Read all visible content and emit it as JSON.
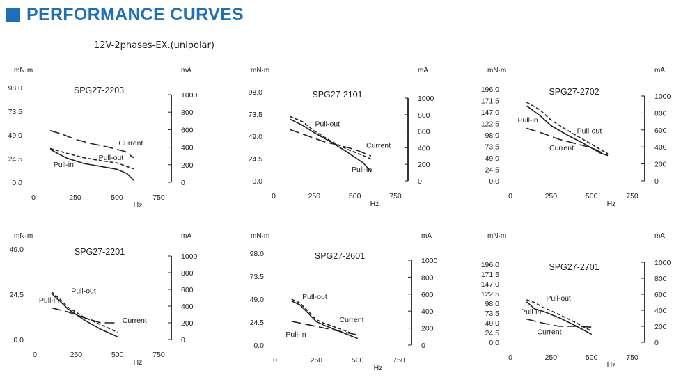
{
  "header": {
    "title": "PERFORMANCE CURVES",
    "subtitle": "12V-2phases-EX.(unipolar)"
  },
  "style": {
    "accent": "#1d6fb8",
    "line": "#222222"
  },
  "chart_data": [
    {
      "type": "line",
      "title": "SPG27-2203",
      "left_unit": "mN·m",
      "right_unit": "mA",
      "xlabel": "Hz",
      "xlim": [
        0,
        750
      ],
      "x_ticks": [
        0,
        250,
        500,
        750
      ],
      "ylim": [
        0,
        98
      ],
      "y_ticks": [
        "0.0",
        "24.5",
        "49.0",
        "73.5",
        "98.0"
      ],
      "y2lim": [
        0,
        1000
      ],
      "y2_ticks": [
        0,
        200,
        400,
        600,
        800,
        1000
      ],
      "series": [
        {
          "name": "Current",
          "axis": "right",
          "style": "longdash",
          "label_at": [
            510,
            420
          ],
          "x": [
            100,
            170,
            250,
            350,
            450,
            550,
            600
          ],
          "y": [
            590,
            550,
            490,
            440,
            400,
            350,
            280
          ]
        },
        {
          "name": "Pull-out",
          "axis": "left",
          "style": "dash",
          "label_at": [
            390,
            23
          ],
          "x": [
            100,
            200,
            300,
            400,
            500,
            600
          ],
          "y": [
            35,
            30,
            25.5,
            22.5,
            20,
            14
          ]
        },
        {
          "name": "Pull-in",
          "axis": "left",
          "style": "solid",
          "label_at": [
            120,
            16
          ],
          "x": [
            100,
            200,
            300,
            400,
            500,
            560,
            600
          ],
          "y": [
            34,
            25,
            19.5,
            16.5,
            13.5,
            9,
            2
          ]
        }
      ]
    },
    {
      "type": "line",
      "title": "SPG27-2101",
      "left_unit": "mN·m",
      "right_unit": "mA",
      "xlabel": "Hz",
      "xlim": [
        0,
        750
      ],
      "x_ticks": [
        0,
        250,
        500,
        750
      ],
      "ylim": [
        0,
        98
      ],
      "y_ticks": [
        "0.0",
        "24.5",
        "49.0",
        "73.5",
        "98.0"
      ],
      "y2lim": [
        0,
        1000
      ],
      "y2_ticks": [
        0,
        200,
        400,
        600,
        800,
        1000
      ],
      "series": [
        {
          "name": "Current",
          "axis": "right",
          "style": "longdash",
          "label_at": [
            570,
            400
          ],
          "x": [
            100,
            200,
            300,
            400,
            500,
            600
          ],
          "y": [
            620,
            550,
            480,
            430,
            380,
            300
          ]
        },
        {
          "name": "Pull-out",
          "axis": "left",
          "style": "dash",
          "label_at": [
            255,
            60
          ],
          "x": [
            100,
            180,
            250,
            350,
            450,
            550,
            600
          ],
          "y": [
            71,
            65,
            55,
            44,
            35,
            28,
            24
          ]
        },
        {
          "name": "Pull-in",
          "axis": "left",
          "style": "solid",
          "label_at": [
            480,
            10
          ],
          "x": [
            100,
            180,
            250,
            350,
            450,
            550,
            600
          ],
          "y": [
            68,
            61,
            53,
            43,
            32,
            20,
            10
          ]
        }
      ]
    },
    {
      "type": "line",
      "title": "SPG27-2702",
      "left_unit": "mN·m",
      "right_unit": "mA",
      "xlabel": "Hz",
      "xlim": [
        0,
        750
      ],
      "x_ticks": [
        0,
        250,
        500,
        750
      ],
      "ylim": [
        0,
        196
      ],
      "y_ticks": [
        "0.0",
        "24.5",
        "49.0",
        "73.5",
        "98.0",
        "122.5",
        "147.0",
        "171.5",
        "196.0"
      ],
      "y2lim": [
        0,
        1000
      ],
      "y2_ticks": [
        0,
        200,
        400,
        600,
        800,
        1000
      ],
      "series": [
        {
          "name": "Current",
          "axis": "right",
          "style": "longdash",
          "label_at": [
            240,
            360
          ],
          "x": [
            100,
            200,
            300,
            400,
            500,
            600
          ],
          "y": [
            620,
            560,
            490,
            440,
            390,
            300
          ]
        },
        {
          "name": "Pull-out",
          "axis": "left",
          "style": "dash",
          "label_at": [
            410,
            102
          ],
          "x": [
            100,
            180,
            250,
            350,
            450,
            550,
            600
          ],
          "y": [
            168,
            152,
            130,
            108,
            88,
            68,
            58
          ]
        },
        {
          "name": "Pull-in",
          "axis": "left",
          "style": "solid",
          "label_at": [
            45,
            125
          ],
          "x": [
            100,
            180,
            250,
            350,
            450,
            550,
            600
          ],
          "y": [
            160,
            140,
            118,
            98,
            80,
            60,
            54
          ]
        }
      ]
    },
    {
      "type": "line",
      "title": "SPG27-2201",
      "left_unit": "mN·m",
      "right_unit": "mA",
      "xlabel": "Hz",
      "xlim": [
        0,
        750
      ],
      "x_ticks": [
        0,
        250,
        500,
        750
      ],
      "ylim": [
        0,
        49
      ],
      "y_ticks": [
        "0.0",
        "24.5",
        "49.0"
      ],
      "y2lim": [
        0,
        1000
      ],
      "y2_ticks": [
        0,
        200,
        400,
        600,
        800,
        1000
      ],
      "series": [
        {
          "name": "Current",
          "axis": "right",
          "style": "longdash",
          "label_at": [
            530,
            200
          ],
          "x": [
            100,
            200,
            300,
            400,
            500
          ],
          "y": [
            380,
            330,
            260,
            200,
            200
          ]
        },
        {
          "name": "Pull-out",
          "axis": "left",
          "style": "dash",
          "label_at": [
            220,
            25
          ],
          "x": [
            100,
            150,
            200,
            300,
            400,
            500
          ],
          "y": [
            26,
            22,
            17.5,
            12,
            8,
            4
          ]
        },
        {
          "name": "Pull-in",
          "axis": "left",
          "style": "solid",
          "label_at": [
            25,
            20
          ],
          "x": [
            100,
            150,
            200,
            300,
            400,
            500
          ],
          "y": [
            25,
            21,
            16.5,
            10.5,
            5.5,
            1.5
          ]
        }
      ]
    },
    {
      "type": "line",
      "title": "SPG27-2601",
      "left_unit": "mN·m",
      "right_unit": "mA",
      "xlabel": "Hz",
      "xlim": [
        0,
        750
      ],
      "x_ticks": [
        0,
        250,
        500,
        750
      ],
      "ylim": [
        0,
        98
      ],
      "y_ticks": [
        "0.0",
        "24.5",
        "49.0",
        "73.5",
        "98.0"
      ],
      "y2lim": [
        0,
        1000
      ],
      "y2_ticks": [
        0,
        200,
        400,
        600,
        800,
        1000
      ],
      "series": [
        {
          "name": "Current",
          "axis": "right",
          "style": "longdash",
          "label_at": [
            390,
            270
          ],
          "x": [
            100,
            200,
            300,
            400,
            500
          ],
          "y": [
            280,
            240,
            200,
            160,
            120
          ]
        },
        {
          "name": "Pull-out",
          "axis": "left",
          "style": "dash",
          "label_at": [
            165,
            49
          ],
          "x": [
            100,
            150,
            200,
            250,
            300,
            400,
            500
          ],
          "y": [
            49,
            45,
            36,
            27,
            23,
            17,
            10
          ]
        },
        {
          "name": "Pull-in",
          "axis": "left",
          "style": "solid",
          "label_at": [
            65,
            9
          ],
          "x": [
            100,
            150,
            200,
            250,
            300,
            400,
            500
          ],
          "y": [
            47,
            43,
            34,
            25,
            21,
            14,
            7
          ]
        }
      ]
    },
    {
      "type": "line",
      "title": "SPG27-2701",
      "left_unit": "mN·m",
      "right_unit": "mA",
      "xlabel": "Hz",
      "xlim": [
        0,
        750
      ],
      "x_ticks": [
        0,
        250,
        500,
        750
      ],
      "ylim": [
        0,
        196
      ],
      "y_ticks": [
        "0.0",
        "24.5",
        "49.0",
        "73.5",
        "98.0",
        "122.5",
        "147.0",
        "171.5",
        "196.0"
      ],
      "y2lim": [
        0,
        1000
      ],
      "y2_ticks": [
        0,
        200,
        400,
        600,
        800,
        1000
      ],
      "series": [
        {
          "name": "Current",
          "axis": "right",
          "style": "longdash",
          "label_at": [
            165,
            100
          ],
          "x": [
            100,
            200,
            300,
            400,
            500
          ],
          "y": [
            290,
            240,
            200,
            200,
            190
          ]
        },
        {
          "name": "Pull-out",
          "axis": "left",
          "style": "dash",
          "label_at": [
            220,
            105
          ],
          "x": [
            100,
            150,
            200,
            300,
            400,
            500
          ],
          "y": [
            107,
            100,
            88,
            70,
            50,
            28
          ]
        },
        {
          "name": "Pull-in",
          "axis": "left",
          "style": "solid",
          "label_at": [
            65,
            71
          ],
          "x": [
            100,
            150,
            200,
            300,
            400,
            500
          ],
          "y": [
            102,
            84,
            78,
            62,
            42,
            20
          ]
        }
      ]
    }
  ]
}
